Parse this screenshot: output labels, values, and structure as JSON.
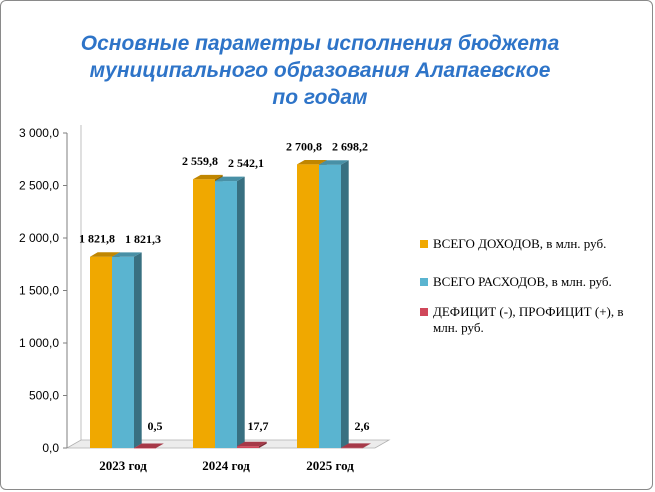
{
  "title_lines": [
    "Основные параметры исполнения бюджета",
    "муниципального образования Алапаевское",
    "по годам"
  ],
  "chart_data": {
    "type": "bar",
    "title": "Основные параметры исполнения бюджета муниципального образования Алапаевское по годам",
    "categories": [
      "2023 год",
      "2024 год",
      "2025 год"
    ],
    "series": [
      {
        "name": "ВСЕГО ДОХОДОВ, в млн. руб.",
        "values": [
          1821.8,
          2559.8,
          2700.8
        ],
        "labels": [
          "1 821,8",
          "2 559,8",
          "2 700,8"
        ],
        "color": "#f0a800"
      },
      {
        "name": "ВСЕГО РАСХОДОВ, в млн. руб.",
        "values": [
          1821.3,
          2542.1,
          2698.2
        ],
        "labels": [
          "1 821,3",
          "2 542,1",
          "2 698,2"
        ],
        "color": "#5ab4d0"
      },
      {
        "name": "ДЕФИЦИТ (-), ПРОФИЦИТ (+), в млн. руб.",
        "values": [
          0.5,
          17.7,
          2.6
        ],
        "labels": [
          "0,5",
          "17,7",
          "2,6"
        ],
        "color": "#d0475a"
      }
    ],
    "ylim": [
      0,
      3000
    ],
    "yticks": [
      0,
      500,
      1000,
      1500,
      2000,
      2500,
      3000
    ],
    "ytick_labels": [
      "0,0",
      "500,0",
      "1 000,0",
      "1 500,0",
      "2 000,0",
      "2 500,0",
      "3 000,0"
    ],
    "xlabel": "",
    "ylabel": "",
    "legend_position": "right",
    "grid": false
  }
}
